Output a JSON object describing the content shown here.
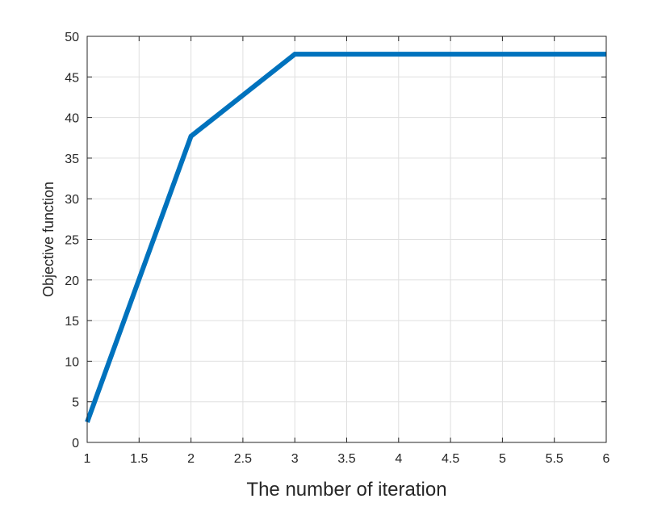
{
  "chart_data": {
    "type": "line",
    "title": "",
    "xlabel": "The number of iteration",
    "ylabel": "Objective function",
    "xlim": [
      1,
      6
    ],
    "ylim": [
      0,
      50
    ],
    "xticks": [
      1,
      1.5,
      2,
      2.5,
      3,
      3.5,
      4,
      4.5,
      5,
      5.5,
      6
    ],
    "yticks": [
      0,
      5,
      10,
      15,
      20,
      25,
      30,
      35,
      40,
      45,
      50
    ],
    "grid": true,
    "series": [
      {
        "x": [
          1,
          2,
          3,
          4,
          5,
          6
        ],
        "y": [
          2.5,
          37.7,
          47.8,
          47.8,
          47.8,
          47.8
        ],
        "color": "#0072BD"
      }
    ]
  }
}
